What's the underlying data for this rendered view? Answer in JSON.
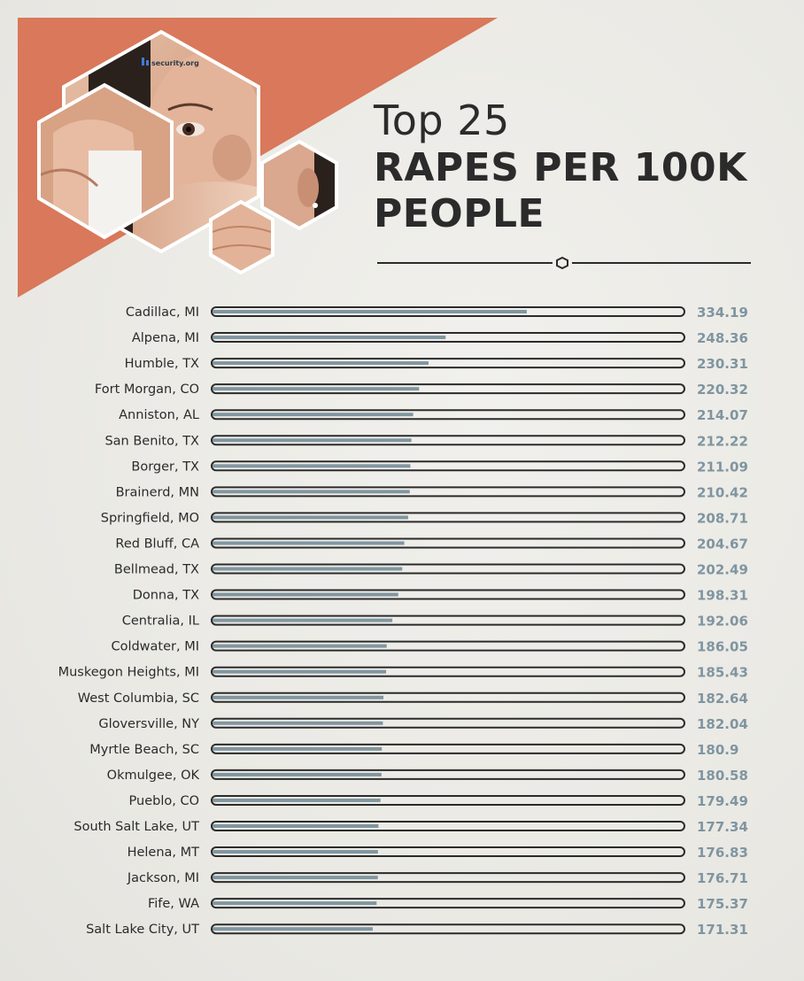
{
  "brand": {
    "logo_text": "security.org",
    "accent": "#d9785a",
    "bar_fill": "#8196a0",
    "track": "#2b2b2b"
  },
  "header": {
    "title_line1": "Top 25",
    "title_line2": "RAPES PER 100K",
    "title_line3": "PEOPLE"
  },
  "chart_data": {
    "type": "bar",
    "orientation": "horizontal",
    "xlim": [
      0,
      500
    ],
    "categories": [
      "Cadillac, MI",
      "Alpena, MI",
      "Humble, TX",
      "Fort Morgan, CO",
      "Anniston, AL",
      "San Benito, TX",
      "Borger, TX",
      "Brainerd, MN",
      "Springfield, MO",
      "Red Bluff, CA",
      "Bellmead, TX",
      "Donna, TX",
      "Centralia, IL",
      "Coldwater, MI",
      "Muskegon Heights, MI",
      "West Columbia, SC",
      "Gloversville, NY",
      "Myrtle Beach, SC",
      "Okmulgee, OK",
      "Pueblo, CO",
      "South Salt Lake, UT",
      "Helena, MT",
      "Jackson, MI",
      "Fife, WA",
      "Salt Lake City, UT"
    ],
    "values": [
      334.19,
      248.36,
      230.31,
      220.32,
      214.07,
      212.22,
      211.09,
      210.42,
      208.71,
      204.67,
      202.49,
      198.31,
      192.06,
      186.05,
      185.43,
      182.64,
      182.04,
      180.9,
      180.58,
      179.49,
      177.34,
      176.83,
      176.71,
      175.37,
      171.31
    ],
    "value_labels": [
      "334.19",
      "248.36",
      "230.31",
      "220.32",
      "214.07",
      "212.22",
      "211.09",
      "210.42",
      "208.71",
      "204.67",
      "202.49",
      "198.31",
      "192.06",
      "186.05",
      "185.43",
      "182.64",
      "182.04",
      "180.9",
      "180.58",
      "179.49",
      "177.34",
      "176.83",
      "176.71",
      "175.37",
      "171.31"
    ]
  }
}
